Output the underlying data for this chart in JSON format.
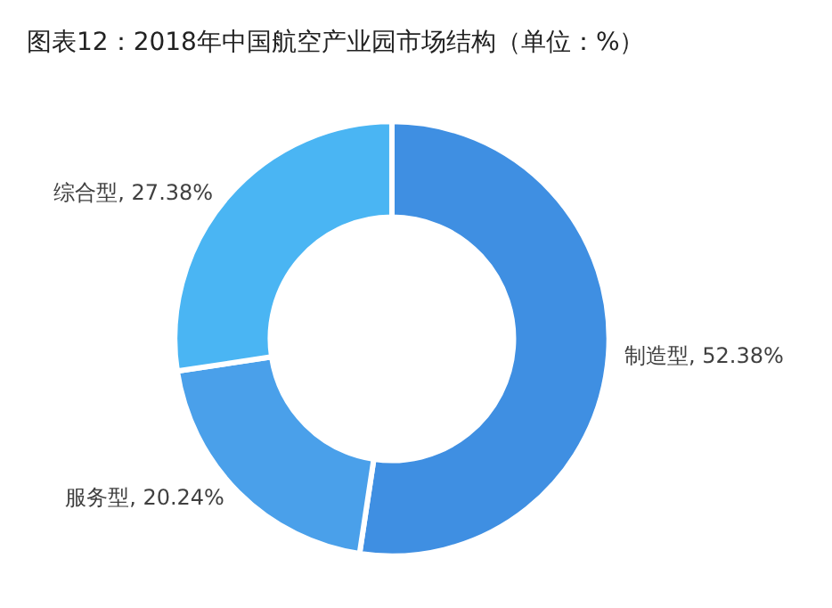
{
  "chart_data": {
    "type": "donut",
    "title": "图表12：2018年中国航空产业园市场结构（单位：%）",
    "categories": [
      "制造型",
      "服务型",
      "综合型"
    ],
    "values": [
      52.38,
      20.24,
      27.38
    ],
    "value_labels": [
      "52.38%",
      "20.24%",
      "27.38%"
    ],
    "colors": [
      "#3f8fe2",
      "#4aa0ea",
      "#4ab5f3"
    ],
    "legend": false
  }
}
